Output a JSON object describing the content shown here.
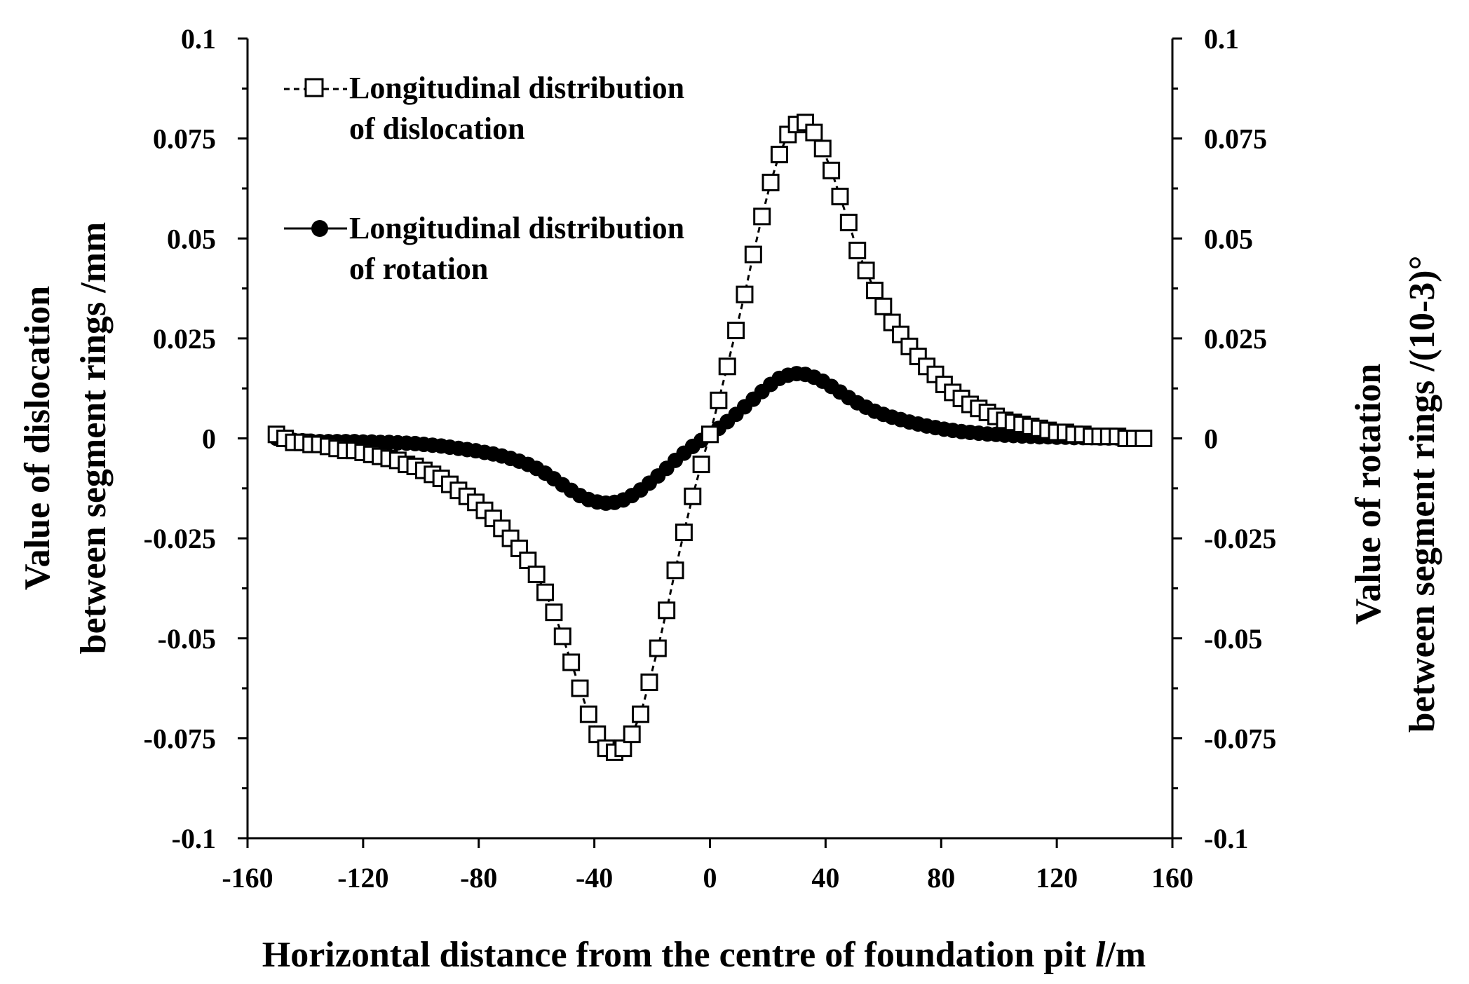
{
  "chart_data": {
    "type": "line",
    "title": "",
    "xlabel_main": "Horizontal distance from the centre of foundation pit ",
    "xlabel_italic": "l",
    "xlabel_unit": "/m",
    "ylabel_left_line1": "Value of dislocation",
    "ylabel_left_line2": "between segment rings /mm",
    "ylabel_right_line1": "Value of rotation",
    "ylabel_right_line2": "between segment rings /(10-3)°",
    "xlim": [
      -160,
      160
    ],
    "ylim": [
      -0.1,
      0.1
    ],
    "xticks": [
      -160,
      -120,
      -80,
      -40,
      0,
      40,
      80,
      120,
      160
    ],
    "xtick_labels": [
      "-160",
      "-120",
      "-80",
      "-40",
      "0",
      "40",
      "80",
      "120",
      "160"
    ],
    "yticks": [
      0.1,
      0.075,
      0.05,
      0.025,
      0,
      -0.025,
      -0.05,
      -0.075,
      -0.1
    ],
    "ytick_labels_left": [
      "0.1",
      "0.075",
      "0.05",
      "0.025",
      "0",
      "-0.025",
      "-0.05",
      "-0.075",
      "-0.1"
    ],
    "ytick_labels_right": [
      "0.1",
      "0.075",
      "0.05",
      "0.025",
      "0",
      "-0.025",
      "-0.05",
      "-0.075",
      "-0.1"
    ],
    "legend": {
      "placement": "top-left",
      "entries": [
        {
          "line1": "Longitudinal distribution",
          "line2": "of dislocation",
          "marker": "open-square",
          "line": "dashed"
        },
        {
          "line1": "Longitudinal distribution",
          "line2": "of rotation",
          "marker": "filled-circle",
          "line": "solid"
        }
      ]
    },
    "series": [
      {
        "name": "Longitudinal distribution of dislocation",
        "marker": "open-square",
        "x": [
          -150,
          -147,
          -144,
          -141,
          -138,
          -135,
          -132,
          -129,
          -126,
          -123,
          -120,
          -117,
          -114,
          -111,
          -108,
          -105,
          -102,
          -99,
          -96,
          -93,
          -90,
          -87,
          -84,
          -81,
          -78,
          -75,
          -72,
          -69,
          -66,
          -63,
          -60,
          -57,
          -54,
          -51,
          -48,
          -45,
          -42,
          -39,
          -36,
          -33,
          -30,
          -27,
          -24,
          -21,
          -18,
          -15,
          -12,
          -9,
          -6,
          -3,
          0,
          3,
          6,
          9,
          12,
          15,
          18,
          21,
          24,
          27,
          30,
          33,
          36,
          39,
          42,
          45,
          48,
          51,
          54,
          57,
          60,
          63,
          66,
          69,
          72,
          75,
          78,
          81,
          84,
          87,
          90,
          93,
          96,
          99,
          102,
          105,
          108,
          111,
          114,
          117,
          120,
          123,
          126,
          129,
          132,
          135,
          138,
          141,
          144,
          147,
          150
        ],
        "values": [
          0.001,
          0,
          -0.001,
          -0.001,
          -0.0015,
          -0.0015,
          -0.002,
          -0.0025,
          -0.003,
          -0.003,
          -0.0035,
          -0.004,
          -0.0045,
          -0.005,
          -0.0055,
          -0.0065,
          -0.007,
          -0.008,
          -0.009,
          -0.01,
          -0.0115,
          -0.013,
          -0.0145,
          -0.016,
          -0.018,
          -0.02,
          -0.0225,
          -0.025,
          -0.0275,
          -0.0305,
          -0.034,
          -0.0385,
          -0.0435,
          -0.0495,
          -0.056,
          -0.0625,
          -0.069,
          -0.074,
          -0.0775,
          -0.0785,
          -0.0775,
          -0.074,
          -0.069,
          -0.061,
          -0.0525,
          -0.043,
          -0.033,
          -0.0235,
          -0.0145,
          -0.0065,
          0.001,
          0.0095,
          0.018,
          0.027,
          0.036,
          0.046,
          0.0555,
          0.064,
          0.071,
          0.076,
          0.0785,
          0.079,
          0.0765,
          0.0725,
          0.067,
          0.0605,
          0.054,
          0.047,
          0.042,
          0.037,
          0.033,
          0.029,
          0.026,
          0.023,
          0.0205,
          0.018,
          0.016,
          0.0135,
          0.0115,
          0.01,
          0.0085,
          0.0075,
          0.0065,
          0.0055,
          0.0045,
          0.004,
          0.0035,
          0.003,
          0.0025,
          0.002,
          0.0015,
          0.0015,
          0.001,
          0.001,
          0.0005,
          0.0005,
          0.0005,
          0.0005,
          0,
          0,
          0
        ]
      },
      {
        "name": "Longitudinal distribution of rotation",
        "marker": "filled-circle",
        "x": [
          -150,
          -147,
          -144,
          -141,
          -138,
          -135,
          -132,
          -129,
          -126,
          -123,
          -120,
          -117,
          -114,
          -111,
          -108,
          -105,
          -102,
          -99,
          -96,
          -93,
          -90,
          -87,
          -84,
          -81,
          -78,
          -75,
          -72,
          -69,
          -66,
          -63,
          -60,
          -57,
          -54,
          -51,
          -48,
          -45,
          -42,
          -39,
          -36,
          -33,
          -30,
          -27,
          -24,
          -21,
          -18,
          -15,
          -12,
          -9,
          -6,
          -3,
          0,
          3,
          6,
          9,
          12,
          15,
          18,
          21,
          24,
          27,
          30,
          33,
          36,
          39,
          42,
          45,
          48,
          51,
          54,
          57,
          60,
          63,
          66,
          69,
          72,
          75,
          78,
          81,
          84,
          87,
          90,
          93,
          96,
          99,
          102,
          105,
          108,
          111,
          114,
          117,
          120,
          123,
          126,
          129,
          132,
          135,
          138,
          141,
          144,
          147,
          150
        ],
        "values": [
          0,
          -0.0003,
          -0.0005,
          -0.0006,
          -0.0007,
          -0.0008,
          -0.0008,
          -0.0008,
          -0.0008,
          -0.0008,
          -0.0009,
          -0.0009,
          -0.001,
          -0.001,
          -0.0011,
          -0.0012,
          -0.0013,
          -0.0015,
          -0.0017,
          -0.0019,
          -0.0022,
          -0.0025,
          -0.0028,
          -0.0031,
          -0.0035,
          -0.0039,
          -0.0044,
          -0.005,
          -0.0057,
          -0.0065,
          -0.0075,
          -0.0087,
          -0.0101,
          -0.0116,
          -0.013,
          -0.0143,
          -0.0153,
          -0.0159,
          -0.0162,
          -0.016,
          -0.0154,
          -0.0143,
          -0.0129,
          -0.0112,
          -0.0094,
          -0.0075,
          -0.0055,
          -0.0037,
          -0.002,
          -0.0005,
          0.001,
          0.0025,
          0.0042,
          0.006,
          0.0079,
          0.0098,
          0.0117,
          0.0135,
          0.015,
          0.0158,
          0.0162,
          0.016,
          0.0153,
          0.0143,
          0.013,
          0.0116,
          0.0102,
          0.0089,
          0.0078,
          0.0068,
          0.006,
          0.0053,
          0.0047,
          0.0041,
          0.0036,
          0.0031,
          0.0027,
          0.0023,
          0.002,
          0.0017,
          0.0015,
          0.0013,
          0.0011,
          0.001,
          0.0008,
          0.0007,
          0.0006,
          0.0005,
          0.0004,
          0.0004,
          0.0003,
          0.0003,
          0.0002,
          0.0002,
          0.0002,
          0.0001,
          0.0001,
          0.0001,
          0.0001,
          0,
          0
        ]
      }
    ]
  }
}
